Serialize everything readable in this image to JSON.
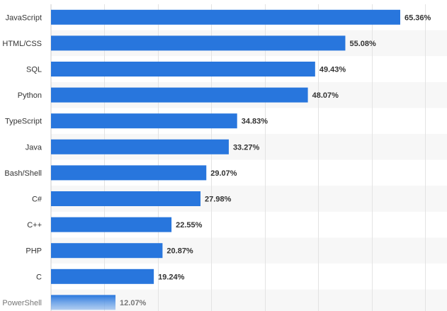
{
  "chart_data": {
    "type": "bar",
    "orientation": "horizontal",
    "categories": [
      "JavaScript",
      "HTML/CSS",
      "SQL",
      "Python",
      "TypeScript",
      "Java",
      "Bash/Shell",
      "C#",
      "C++",
      "PHP",
      "C",
      "PowerShell"
    ],
    "values": [
      65.36,
      55.08,
      49.43,
      48.07,
      34.83,
      33.27,
      29.07,
      27.98,
      22.55,
      20.87,
      19.24,
      12.07
    ],
    "value_labels": [
      "65.36%",
      "55.08%",
      "49.43%",
      "48.07%",
      "34.83%",
      "33.27%",
      "29.07%",
      "27.98%",
      "22.55%",
      "20.87%",
      "19.24%",
      "12.07%"
    ],
    "xlim": [
      0,
      70
    ],
    "grid": true,
    "bar_color": "#2876dd",
    "row_stripe_color": "#f7f7f7",
    "grid_color": "#e3e3e3",
    "note": "Last row (PowerShell) fades out at bottom of image"
  }
}
